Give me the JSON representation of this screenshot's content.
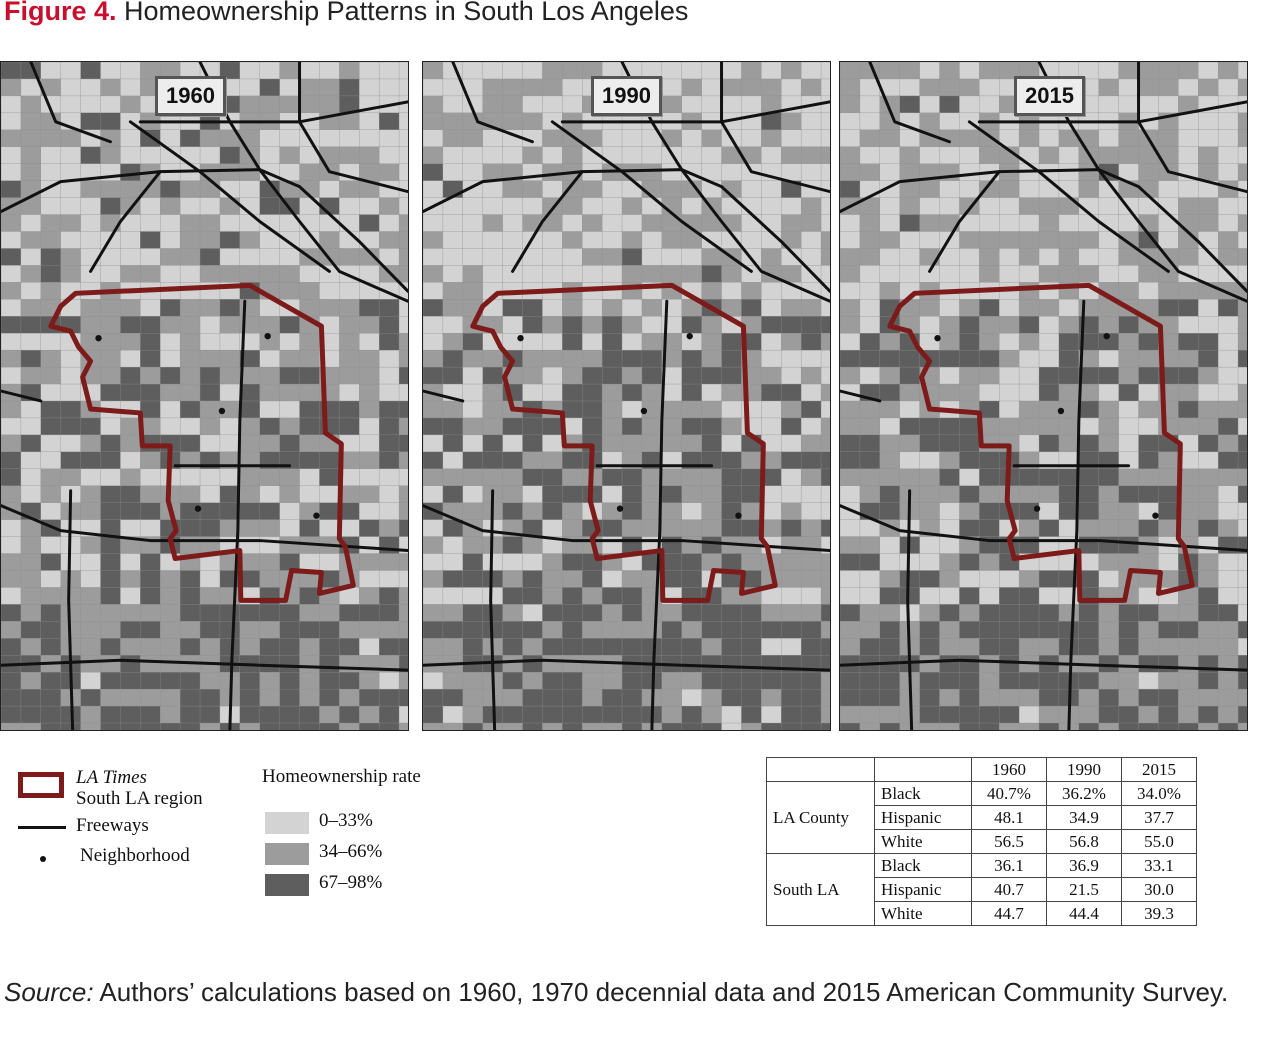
{
  "figure": {
    "label": "Figure 4.",
    "title": "Homeownership Patterns in South Los Angeles"
  },
  "maps": [
    {
      "year": "1960"
    },
    {
      "year": "1990"
    },
    {
      "year": "2015"
    }
  ],
  "legend": {
    "region_label_italic": "LA Times",
    "region_label": "South LA region",
    "freeways_label": "Freeways",
    "neighborhood_label": "Neighborhood",
    "rate_title": "Homeownership rate",
    "classes": [
      {
        "label": "0–33%",
        "color": "#d3d3d3"
      },
      {
        "label": "34–66%",
        "color": "#9c9c9c"
      },
      {
        "label": "67–98%",
        "color": "#5e5e5e"
      }
    ],
    "region_color": "#7d1a1a"
  },
  "table": {
    "years": [
      "1960",
      "1990",
      "2015"
    ],
    "groups": [
      {
        "name": "LA County",
        "rows": [
          {
            "race": "Black",
            "values": [
              "40.7%",
              "36.2%",
              "34.0%"
            ]
          },
          {
            "race": "Hispanic",
            "values": [
              "48.1",
              "34.9",
              "37.7"
            ]
          },
          {
            "race": "White",
            "values": [
              "56.5",
              "56.8",
              "55.0"
            ]
          }
        ]
      },
      {
        "name": "South LA",
        "rows": [
          {
            "race": "Black",
            "values": [
              "36.1",
              "36.9",
              "33.1"
            ]
          },
          {
            "race": "Hispanic",
            "values": [
              "40.7",
              "21.5",
              "30.0"
            ]
          },
          {
            "race": "White",
            "values": [
              "44.7",
              "44.4",
              "39.3"
            ]
          }
        ]
      }
    ]
  },
  "source": {
    "label": "Source:",
    "text": " Authors’ calculations based on 1960, 1970 decennial data and 2015 American Community Survey."
  }
}
